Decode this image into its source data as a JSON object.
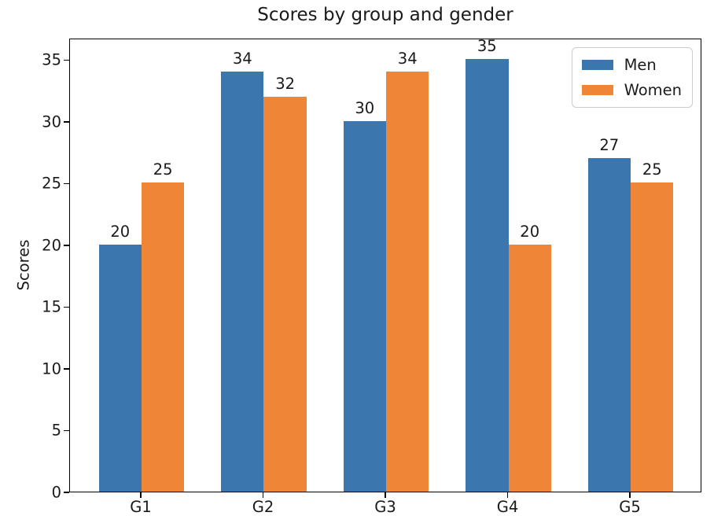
{
  "title": "Scores by group and gender",
  "chart_data": {
    "type": "bar",
    "title": "Scores by group and gender",
    "xlabel": "",
    "ylabel": "Scores",
    "categories": [
      "G1",
      "G2",
      "G3",
      "G4",
      "G5"
    ],
    "series": [
      {
        "name": "Men",
        "color": "#3b76af",
        "values": [
          20,
          34,
          30,
          35,
          27
        ]
      },
      {
        "name": "Women",
        "color": "#ef8536",
        "values": [
          25,
          32,
          34,
          20,
          25
        ]
      }
    ],
    "bar_value_labels": true,
    "yticks": [
      0,
      5,
      10,
      15,
      20,
      25,
      30,
      35
    ],
    "ylim": [
      0,
      36.75
    ],
    "xlim": [
      -0.585,
      4.585
    ],
    "bar_width_units": 0.35,
    "grid": false,
    "legend_position": "upper right",
    "colors": {
      "men": "#3b76af",
      "women": "#ef8536",
      "spine": "#000000",
      "legend_border": "#cccccc"
    }
  }
}
